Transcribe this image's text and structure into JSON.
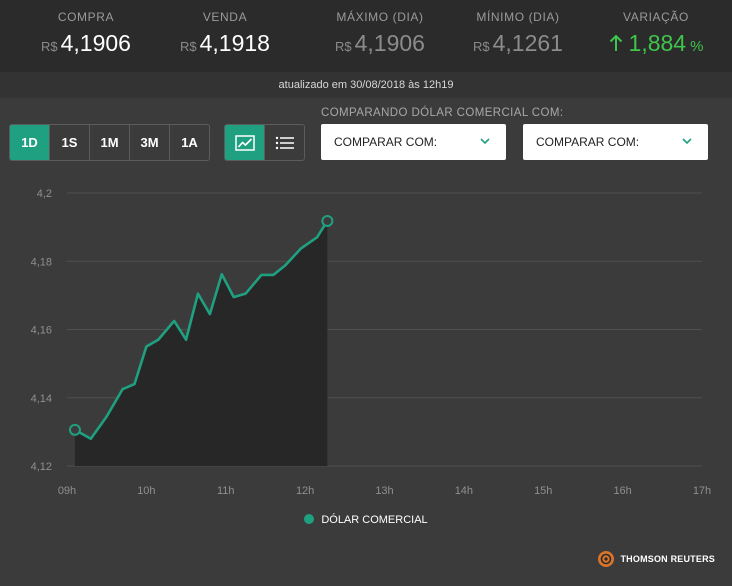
{
  "stats": [
    {
      "label": "COMPRA",
      "currency": "R$",
      "value": "4,1906"
    },
    {
      "label": "VENDA",
      "currency": "R$",
      "value": "4,1918"
    },
    {
      "label": "MÁXIMO (DIA)",
      "currency": "R$",
      "value": "4,1906"
    },
    {
      "label": "MÍNIMO (DIA)",
      "currency": "R$",
      "value": "4,1261"
    },
    {
      "label": "VARIAÇÃO",
      "value": "1,884",
      "unit": "%",
      "direction": "up"
    }
  ],
  "updated": "atualizado em 30/08/2018 às 12h19",
  "periods": [
    "1D",
    "1S",
    "1M",
    "3M",
    "1A"
  ],
  "active_period": "1D",
  "view_icons": [
    "line-chart-icon",
    "list-icon"
  ],
  "compare": {
    "title": "COMPARANDO DÓLAR COMERCIAL COM:",
    "dropdown1": "COMPARAR COM:",
    "dropdown2": "COMPARAR COM:"
  },
  "colors": {
    "accent": "#1fa080",
    "up": "#3fc44c",
    "header_bg": "#2b2b2b",
    "page_bg": "#3b3b3b"
  },
  "chart_data": {
    "type": "area",
    "series": [
      {
        "name": "DÓLAR COMERCIAL",
        "x": [
          9.1,
          9.3,
          9.5,
          9.7,
          9.85,
          10.0,
          10.15,
          10.35,
          10.5,
          10.65,
          10.8,
          10.95,
          11.1,
          11.25,
          11.45,
          11.6,
          11.75,
          11.95,
          12.15,
          12.28
        ],
        "values": [
          4.1306,
          4.128,
          4.1345,
          4.1425,
          4.144,
          4.155,
          4.157,
          4.1625,
          4.157,
          4.1705,
          4.1645,
          4.1762,
          4.1695,
          4.1705,
          4.176,
          4.176,
          4.1788,
          4.1838,
          4.187,
          4.1918
        ]
      }
    ],
    "xlim": [
      9,
      17
    ],
    "ylim": [
      4.12,
      4.2
    ],
    "xticks": [
      9,
      10,
      11,
      12,
      13,
      14,
      15,
      16,
      17
    ],
    "xtick_labels": [
      "09h",
      "10h",
      "11h",
      "12h",
      "13h",
      "14h",
      "15h",
      "16h",
      "17h"
    ],
    "yticks": [
      4.12,
      4.14,
      4.16,
      4.18,
      4.2
    ],
    "ytick_labels": [
      "4,12",
      "4,14",
      "4,16",
      "4,18",
      "4,2"
    ],
    "grid": true,
    "legend": "bottom-center",
    "legend_label": "DÓLAR COMERCIAL",
    "title": "",
    "xlabel": "",
    "ylabel": ""
  },
  "footer": {
    "brand": "THOMSON REUTERS",
    "icon": "thomson-reuters-logo"
  }
}
